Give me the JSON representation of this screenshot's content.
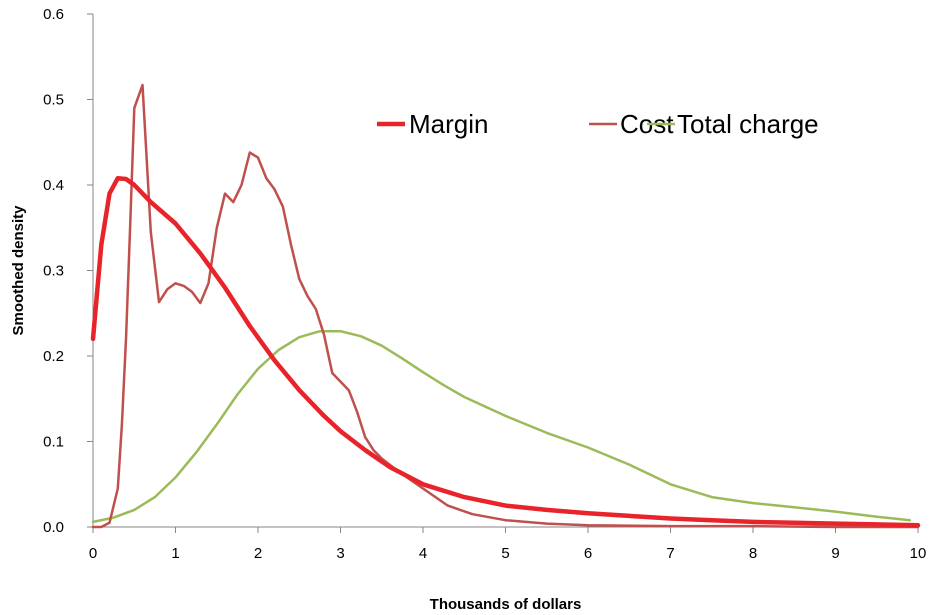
{
  "chart_data": {
    "type": "line",
    "xlabel": "Thousands of dollars",
    "ylabel": "Smoothed density",
    "xlim": [
      0,
      10
    ],
    "ylim": [
      0,
      0.6
    ],
    "x_ticks": [
      "0",
      "1",
      "2",
      "3",
      "4",
      "5",
      "6",
      "7",
      "8",
      "9",
      "10"
    ],
    "y_ticks": [
      "0.0",
      "0.1",
      "0.2",
      "0.3",
      "0.4",
      "0.5",
      "0.6"
    ],
    "grid": false,
    "legend_position": "top-right",
    "series": [
      {
        "name": "Margin",
        "color": "#e8232a",
        "style": "thick",
        "x": [
          0.0,
          0.1,
          0.2,
          0.3,
          0.4,
          0.5,
          0.7,
          1.0,
          1.3,
          1.6,
          1.9,
          2.2,
          2.5,
          2.8,
          3.0,
          3.3,
          3.6,
          4.0,
          4.5,
          5.0,
          5.5,
          6.0,
          6.5,
          7.0,
          7.5,
          8.0,
          8.5,
          9.0,
          9.5,
          10.0
        ],
        "y": [
          0.22,
          0.33,
          0.39,
          0.408,
          0.407,
          0.4,
          0.38,
          0.355,
          0.32,
          0.28,
          0.235,
          0.195,
          0.16,
          0.13,
          0.112,
          0.09,
          0.07,
          0.05,
          0.035,
          0.025,
          0.02,
          0.016,
          0.013,
          0.01,
          0.008,
          0.006,
          0.005,
          0.004,
          0.003,
          0.002
        ]
      },
      {
        "name": "Cost",
        "color": "#c0504d",
        "style": "thin",
        "x": [
          0.0,
          0.1,
          0.2,
          0.3,
          0.35,
          0.4,
          0.45,
          0.5,
          0.6,
          0.7,
          0.8,
          0.9,
          1.0,
          1.1,
          1.2,
          1.3,
          1.4,
          1.5,
          1.6,
          1.7,
          1.8,
          1.9,
          2.0,
          2.1,
          2.2,
          2.3,
          2.4,
          2.5,
          2.6,
          2.7,
          2.8,
          2.9,
          3.0,
          3.1,
          3.2,
          3.3,
          3.4,
          3.5,
          3.7,
          4.0,
          4.3,
          4.6,
          5.0,
          5.5,
          6.0,
          7.0,
          8.0,
          9.0,
          10.0
        ],
        "y": [
          0.0,
          0.0,
          0.005,
          0.045,
          0.12,
          0.22,
          0.35,
          0.49,
          0.517,
          0.345,
          0.263,
          0.278,
          0.285,
          0.282,
          0.275,
          0.262,
          0.285,
          0.35,
          0.39,
          0.38,
          0.4,
          0.438,
          0.432,
          0.408,
          0.395,
          0.375,
          0.33,
          0.29,
          0.27,
          0.255,
          0.225,
          0.18,
          0.17,
          0.16,
          0.135,
          0.105,
          0.09,
          0.08,
          0.065,
          0.045,
          0.025,
          0.015,
          0.008,
          0.004,
          0.002,
          0.001,
          0.001,
          0.0,
          0.0
        ]
      },
      {
        "name": "Total charge",
        "color": "#9bbb59",
        "style": "thin",
        "x": [
          0.0,
          0.25,
          0.5,
          0.75,
          1.0,
          1.25,
          1.5,
          1.75,
          2.0,
          2.25,
          2.5,
          2.75,
          3.0,
          3.25,
          3.5,
          3.75,
          4.0,
          4.25,
          4.5,
          5.0,
          5.5,
          6.0,
          6.5,
          7.0,
          7.5,
          8.0,
          8.5,
          9.0,
          9.5,
          9.9
        ],
        "y": [
          0.006,
          0.011,
          0.02,
          0.035,
          0.058,
          0.087,
          0.12,
          0.155,
          0.185,
          0.207,
          0.222,
          0.229,
          0.229,
          0.223,
          0.212,
          0.197,
          0.181,
          0.166,
          0.152,
          0.13,
          0.11,
          0.093,
          0.073,
          0.05,
          0.035,
          0.028,
          0.023,
          0.018,
          0.012,
          0.008
        ]
      }
    ]
  }
}
